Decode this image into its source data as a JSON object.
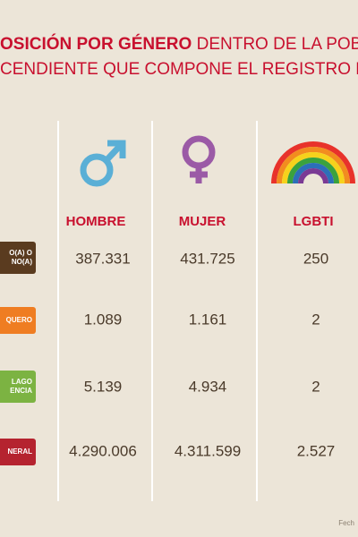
{
  "header": {
    "title_bold": "OSICIÓN POR GÉNERO",
    "title_rest": " DENTRO DE LA POBLA",
    "title_line2": "CENDIENTE QUE COMPONE EL REGISTRO DE"
  },
  "table": {
    "columns": [
      "HOMBRE",
      "MUJER",
      "LGBTI"
    ],
    "rows": [
      {
        "label": [
          "O(A) O",
          "NO(A)"
        ],
        "values": [
          "387.331",
          "431.725",
          "250"
        ]
      },
      {
        "label": [
          "QUERO"
        ],
        "values": [
          "1.089",
          "1.161",
          "2"
        ]
      },
      {
        "label": [
          "LAGO",
          "ENCIA"
        ],
        "values": [
          "5.139",
          "4.934",
          "2"
        ]
      },
      {
        "label": [
          "NERAL"
        ],
        "values": [
          "4.290.006",
          "4.311.599",
          "2.527"
        ]
      }
    ]
  },
  "footer": {
    "text": "Fech"
  }
}
